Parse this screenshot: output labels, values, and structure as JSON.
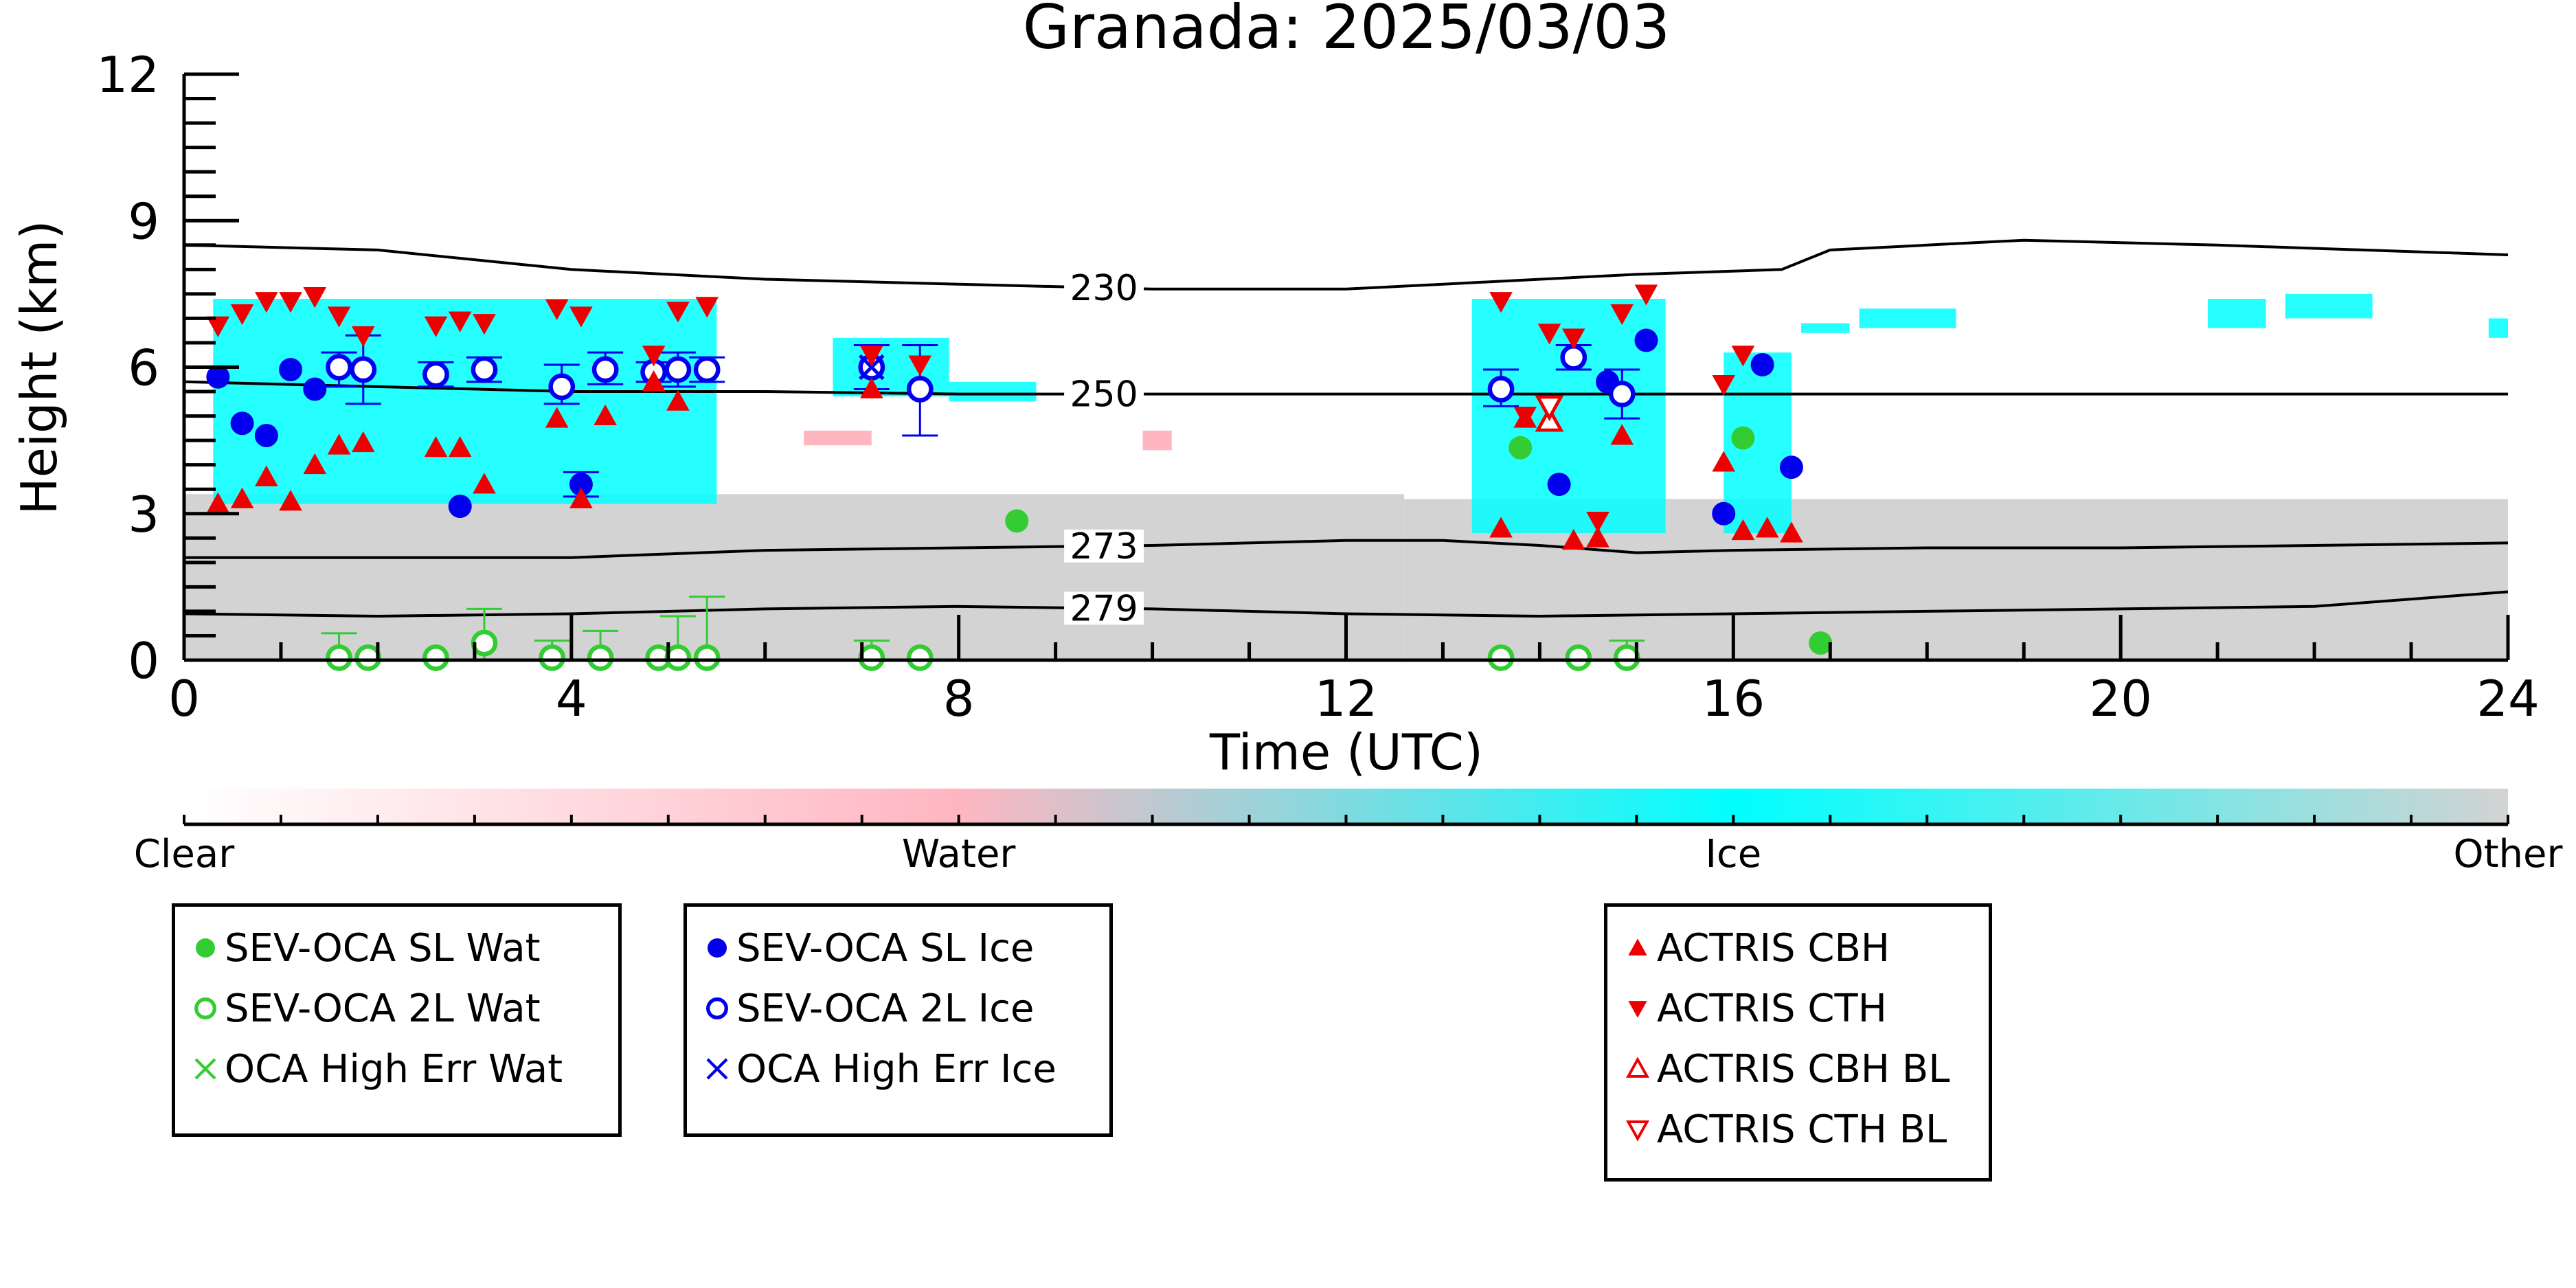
{
  "chart_data": {
    "type": "scatter",
    "title": "Granada: 2025/03/03",
    "xlabel": "Time (UTC)",
    "ylabel": "Height (km)",
    "xlim": [
      0,
      24
    ],
    "ylim": [
      0,
      12
    ],
    "xticks": [
      "0",
      "4",
      "8",
      "12",
      "16",
      "20",
      "24"
    ],
    "yticks": [
      "0",
      "3",
      "6",
      "9",
      "12"
    ],
    "grid": false,
    "background_field": {
      "description_type": "target classification",
      "classes": [
        "Clear",
        "Water",
        "Ice",
        "Other"
      ],
      "colors": {
        "Clear": "#ffffff",
        "Water": "#ffb6c1",
        "Ice": "#00ffff",
        "Other": "#d3d3d3"
      }
    },
    "contours": [
      {
        "label": "230",
        "label_x": 9.5,
        "points": [
          [
            0,
            8.5
          ],
          [
            2,
            8.4
          ],
          [
            4,
            8.0
          ],
          [
            6,
            7.8
          ],
          [
            8,
            7.7
          ],
          [
            10,
            7.6
          ],
          [
            12,
            7.6
          ],
          [
            13,
            7.7
          ],
          [
            15,
            7.9
          ],
          [
            16.5,
            8.0
          ],
          [
            17,
            8.4
          ],
          [
            18,
            8.5
          ],
          [
            19,
            8.6
          ],
          [
            21,
            8.5
          ],
          [
            24,
            8.3
          ]
        ]
      },
      {
        "label": "250",
        "label_x": 9.5,
        "points": [
          [
            0,
            5.7
          ],
          [
            2,
            5.6
          ],
          [
            4,
            5.5
          ],
          [
            6,
            5.5
          ],
          [
            8,
            5.45
          ],
          [
            10,
            5.45
          ],
          [
            12,
            5.45
          ],
          [
            14,
            5.45
          ],
          [
            16,
            5.45
          ],
          [
            18,
            5.45
          ],
          [
            20,
            5.45
          ],
          [
            24,
            5.45
          ]
        ]
      },
      {
        "label": "273",
        "label_x": 9.5,
        "points": [
          [
            0,
            2.1
          ],
          [
            2,
            2.1
          ],
          [
            4,
            2.1
          ],
          [
            6,
            2.25
          ],
          [
            8,
            2.3
          ],
          [
            10,
            2.35
          ],
          [
            12,
            2.45
          ],
          [
            13,
            2.45
          ],
          [
            14,
            2.35
          ],
          [
            15,
            2.2
          ],
          [
            16,
            2.25
          ],
          [
            18,
            2.3
          ],
          [
            20,
            2.3
          ],
          [
            22,
            2.35
          ],
          [
            24,
            2.4
          ]
        ]
      },
      {
        "label": "279",
        "label_x": 9.5,
        "points": [
          [
            0,
            0.95
          ],
          [
            2,
            0.9
          ],
          [
            4,
            0.95
          ],
          [
            6,
            1.05
          ],
          [
            8,
            1.1
          ],
          [
            10,
            1.05
          ],
          [
            12,
            0.95
          ],
          [
            14,
            0.9
          ],
          [
            16,
            0.95
          ],
          [
            18,
            1.0
          ],
          [
            20,
            1.05
          ],
          [
            22,
            1.1
          ],
          [
            24,
            1.4
          ]
        ]
      }
    ],
    "series": [
      {
        "name": "SEV-OCA SL Wat",
        "marker": "filled-circle",
        "color": "#33cc33",
        "points": [
          [
            8.6,
            2.85
          ],
          [
            13.8,
            4.35
          ],
          [
            16.1,
            4.55
          ],
          [
            16.9,
            0.35
          ]
        ]
      },
      {
        "name": "SEV-OCA 2L Wat",
        "marker": "open-circle",
        "color": "#33cc33",
        "points": [
          [
            1.6,
            0.05
          ],
          [
            1.9,
            0.05
          ],
          [
            2.6,
            0.05
          ],
          [
            3.1,
            0.35
          ],
          [
            3.8,
            0.05
          ],
          [
            4.3,
            0.05
          ],
          [
            4.9,
            0.05
          ],
          [
            5.1,
            0.05
          ],
          [
            5.4,
            0.05
          ],
          [
            7.1,
            0.05
          ],
          [
            7.6,
            0.05
          ],
          [
            13.6,
            0.05
          ],
          [
            14.4,
            0.05
          ],
          [
            14.9,
            0.05
          ]
        ]
      },
      {
        "name": "OCA High Err Wat",
        "marker": "x",
        "color": "#33cc33",
        "points": []
      },
      {
        "name": "SEV-OCA SL Ice",
        "marker": "filled-circle",
        "color": "#0000ee",
        "points": [
          [
            0.35,
            5.8
          ],
          [
            0.6,
            4.85
          ],
          [
            0.85,
            4.6
          ],
          [
            1.1,
            5.95
          ],
          [
            1.35,
            5.55
          ],
          [
            2.85,
            3.15
          ],
          [
            4.1,
            3.6
          ],
          [
            14.2,
            3.6
          ],
          [
            14.7,
            5.7
          ],
          [
            15.1,
            6.55
          ],
          [
            15.9,
            3.0
          ],
          [
            16.3,
            6.05
          ],
          [
            16.6,
            3.95
          ]
        ]
      },
      {
        "name": "SEV-OCA 2L Ice",
        "marker": "open-circle",
        "color": "#0000ee",
        "points": [
          [
            1.6,
            6.0
          ],
          [
            1.85,
            5.95
          ],
          [
            2.6,
            5.85
          ],
          [
            3.1,
            5.95
          ],
          [
            3.9,
            5.6
          ],
          [
            4.35,
            5.95
          ],
          [
            4.85,
            5.9
          ],
          [
            5.1,
            5.95
          ],
          [
            5.4,
            5.95
          ],
          [
            7.1,
            6.0
          ],
          [
            7.6,
            5.55
          ],
          [
            13.6,
            5.55
          ],
          [
            14.35,
            6.2
          ],
          [
            14.85,
            5.45
          ]
        ]
      },
      {
        "name": "OCA High Err Ice",
        "marker": "x",
        "color": "#0000ee",
        "points": [
          [
            7.1,
            6.0
          ]
        ]
      },
      {
        "name": "ACTRIS CBH",
        "marker": "triangle-up",
        "color": "#ee0000",
        "points": [
          [
            0.35,
            3.2
          ],
          [
            0.6,
            3.3
          ],
          [
            0.85,
            3.75
          ],
          [
            1.1,
            3.25
          ],
          [
            1.35,
            4.0
          ],
          [
            1.6,
            4.4
          ],
          [
            1.85,
            4.45
          ],
          [
            2.6,
            4.35
          ],
          [
            2.85,
            4.35
          ],
          [
            3.1,
            3.6
          ],
          [
            3.85,
            4.95
          ],
          [
            4.1,
            3.3
          ],
          [
            4.35,
            5.0
          ],
          [
            4.85,
            5.7
          ],
          [
            5.1,
            5.3
          ],
          [
            7.1,
            5.55
          ],
          [
            13.6,
            2.7
          ],
          [
            13.85,
            4.95
          ],
          [
            14.35,
            2.45
          ],
          [
            14.6,
            2.5
          ],
          [
            14.85,
            4.6
          ],
          [
            15.9,
            4.05
          ],
          [
            16.1,
            2.65
          ],
          [
            16.35,
            2.7
          ],
          [
            16.6,
            2.6
          ]
        ]
      },
      {
        "name": "ACTRIS CTH",
        "marker": "triangle-down",
        "color": "#ee0000",
        "points": [
          [
            0.35,
            6.85
          ],
          [
            0.6,
            7.1
          ],
          [
            0.85,
            7.35
          ],
          [
            1.1,
            7.35
          ],
          [
            1.35,
            7.45
          ],
          [
            1.6,
            7.05
          ],
          [
            1.85,
            6.65
          ],
          [
            2.6,
            6.85
          ],
          [
            2.85,
            6.95
          ],
          [
            3.1,
            6.9
          ],
          [
            3.85,
            7.2
          ],
          [
            4.1,
            7.05
          ],
          [
            4.85,
            6.25
          ],
          [
            5.1,
            7.15
          ],
          [
            5.4,
            7.25
          ],
          [
            7.1,
            6.25
          ],
          [
            7.6,
            6.05
          ],
          [
            13.6,
            7.35
          ],
          [
            13.85,
            5.0
          ],
          [
            14.1,
            6.7
          ],
          [
            14.35,
            6.6
          ],
          [
            14.6,
            2.85
          ],
          [
            14.85,
            7.1
          ],
          [
            15.1,
            7.5
          ],
          [
            15.9,
            5.65
          ],
          [
            16.1,
            6.25
          ]
        ]
      },
      {
        "name": "ACTRIS CBH BL",
        "marker": "open-triangle-up",
        "color": "#ee0000",
        "points": [
          [
            14.1,
            4.9
          ]
        ]
      },
      {
        "name": "ACTRIS CTH BL",
        "marker": "open-triangle-down",
        "color": "#ee0000",
        "points": [
          [
            14.1,
            5.2
          ]
        ]
      }
    ],
    "error_bars": [
      {
        "x": 1.6,
        "y": 6.0,
        "low": 5.6,
        "high": 6.3
      },
      {
        "x": 1.85,
        "y": 5.95,
        "low": 5.25,
        "high": 6.65
      },
      {
        "x": 2.6,
        "y": 5.85,
        "low": 5.6,
        "high": 6.1
      },
      {
        "x": 3.1,
        "y": 5.95,
        "low": 5.7,
        "high": 6.2
      },
      {
        "x": 3.9,
        "y": 5.6,
        "low": 5.25,
        "high": 6.05
      },
      {
        "x": 4.35,
        "y": 5.95,
        "low": 5.65,
        "high": 6.3
      },
      {
        "x": 4.85,
        "y": 5.9,
        "low": 5.7,
        "high": 6.1
      },
      {
        "x": 5.1,
        "y": 5.95,
        "low": 5.6,
        "high": 6.3
      },
      {
        "x": 5.4,
        "y": 5.95,
        "low": 5.7,
        "high": 6.2
      },
      {
        "x": 7.1,
        "y": 6.0,
        "low": 5.55,
        "high": 6.45
      },
      {
        "x": 7.6,
        "y": 5.55,
        "low": 4.6,
        "high": 6.45
      },
      {
        "x": 4.1,
        "y": 3.6,
        "low": 3.35,
        "high": 3.85
      },
      {
        "x": 13.6,
        "y": 5.55,
        "low": 5.2,
        "high": 5.95
      },
      {
        "x": 14.35,
        "y": 6.2,
        "low": 5.95,
        "high": 6.45
      },
      {
        "x": 14.85,
        "y": 5.45,
        "low": 4.95,
        "high": 5.95
      },
      {
        "x": 1.6,
        "y": 0.05,
        "low": 0.0,
        "high": 0.55
      },
      {
        "x": 3.1,
        "y": 0.35,
        "low": 0.0,
        "high": 1.05
      },
      {
        "x": 3.8,
        "y": 0.05,
        "low": 0.0,
        "high": 0.4
      },
      {
        "x": 4.3,
        "y": 0.05,
        "low": 0.0,
        "high": 0.6
      },
      {
        "x": 5.1,
        "y": 0.05,
        "low": 0.0,
        "high": 0.9
      },
      {
        "x": 5.4,
        "y": 0.05,
        "low": 0.0,
        "high": 1.3
      },
      {
        "x": 7.1,
        "y": 0.05,
        "low": 0.0,
        "high": 0.4
      },
      {
        "x": 14.9,
        "y": 0.05,
        "low": 0.0,
        "high": 0.4
      }
    ],
    "regions": [
      {
        "cls": "Other",
        "x0": 0.0,
        "x1": 12.6,
        "y0": 0.0,
        "y1": 3.4
      },
      {
        "cls": "Other",
        "x0": 12.6,
        "x1": 24.0,
        "y0": 0.0,
        "y1": 3.3
      },
      {
        "cls": "Ice",
        "x0": 0.3,
        "x1": 5.5,
        "y0": 3.2,
        "y1": 7.4
      },
      {
        "cls": "Ice",
        "x0": 6.7,
        "x1": 7.9,
        "y0": 5.4,
        "y1": 6.6
      },
      {
        "cls": "Ice",
        "x0": 7.9,
        "x1": 8.8,
        "y0": 5.3,
        "y1": 5.7
      },
      {
        "cls": "Ice",
        "x0": 13.3,
        "x1": 15.3,
        "y0": 2.6,
        "y1": 7.4
      },
      {
        "cls": "Ice",
        "x0": 15.9,
        "x1": 16.6,
        "y0": 2.6,
        "y1": 6.3
      },
      {
        "cls": "Ice",
        "x0": 16.7,
        "x1": 17.2,
        "y0": 6.7,
        "y1": 6.9
      },
      {
        "cls": "Ice",
        "x0": 17.3,
        "x1": 18.3,
        "y0": 6.8,
        "y1": 7.2
      },
      {
        "cls": "Ice",
        "x0": 20.9,
        "x1": 21.5,
        "y0": 6.8,
        "y1": 7.4
      },
      {
        "cls": "Ice",
        "x0": 21.7,
        "x1": 22.6,
        "y0": 7.0,
        "y1": 7.5
      },
      {
        "cls": "Ice",
        "x0": 23.8,
        "x1": 24.0,
        "y0": 6.6,
        "y1": 7.0
      },
      {
        "cls": "Water",
        "x0": 6.4,
        "x1": 7.1,
        "y0": 4.4,
        "y1": 4.7
      },
      {
        "cls": "Water",
        "x0": 9.9,
        "x1": 10.2,
        "y0": 4.3,
        "y1": 4.7
      }
    ]
  },
  "colorbar": {
    "labels": [
      "Clear",
      "Water",
      "Ice",
      "Other"
    ]
  },
  "legends": [
    {
      "items": [
        {
          "label": "SEV-OCA SL Wat",
          "marker": "filled-circle",
          "color": "#33cc33"
        },
        {
          "label": "SEV-OCA 2L Wat",
          "marker": "open-circle",
          "color": "#33cc33"
        },
        {
          "label": "OCA High Err Wat",
          "marker": "x",
          "color": "#33cc33"
        }
      ]
    },
    {
      "items": [
        {
          "label": "SEV-OCA SL Ice",
          "marker": "filled-circle",
          "color": "#0000ee"
        },
        {
          "label": "SEV-OCA 2L Ice",
          "marker": "open-circle",
          "color": "#0000ee"
        },
        {
          "label": "OCA High Err Ice",
          "marker": "x",
          "color": "#0000ee"
        }
      ]
    },
    {
      "items": [
        {
          "label": "ACTRIS CBH",
          "marker": "triangle-up",
          "color": "#ee0000"
        },
        {
          "label": "ACTRIS CTH",
          "marker": "triangle-down",
          "color": "#ee0000"
        },
        {
          "label": "ACTRIS CBH BL",
          "marker": "open-triangle-up",
          "color": "#ee0000"
        },
        {
          "label": "ACTRIS CTH BL",
          "marker": "open-triangle-down",
          "color": "#ee0000"
        }
      ]
    }
  ]
}
